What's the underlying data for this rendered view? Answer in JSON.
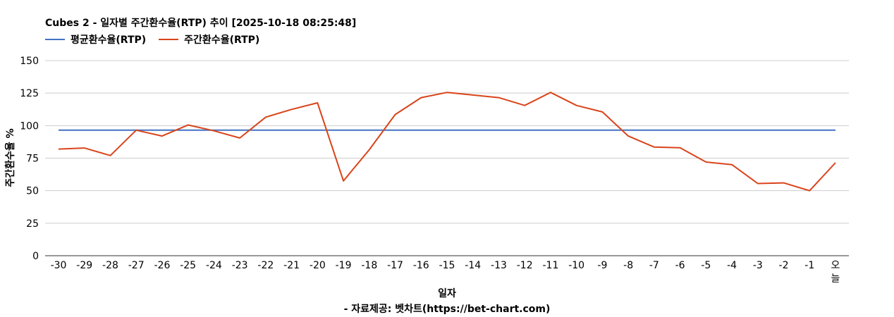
{
  "title": "Cubes 2 - 일자별 주간환수율(RTP) 추이 [2025-10-18 08:25:48]",
  "source": "- 자료제공: 벳차트(https://bet-chart.com)",
  "chart_data": {
    "type": "line",
    "xlabel": "일자",
    "ylabel": "주간환수율 %",
    "ylim": [
      0,
      150
    ],
    "yticks": [
      0,
      25,
      50,
      75,
      100,
      125,
      150
    ],
    "grid": true,
    "legend_position": "top-left",
    "categories": [
      "-30",
      "-29",
      "-28",
      "-27",
      "-26",
      "-25",
      "-24",
      "-23",
      "-22",
      "-21",
      "-20",
      "-19",
      "-18",
      "-17",
      "-16",
      "-15",
      "-14",
      "-13",
      "-12",
      "-11",
      "-10",
      "-9",
      "-8",
      "-7",
      "-6",
      "-5",
      "-4",
      "-3",
      "-2",
      "-1",
      "오늘"
    ],
    "series": [
      {
        "name": "평균환수율(RTP)",
        "color": "#4472c4",
        "values": [
          96.5,
          96.5,
          96.5,
          96.5,
          96.5,
          96.5,
          96.5,
          96.5,
          96.5,
          96.5,
          96.5,
          96.5,
          96.5,
          96.5,
          96.5,
          96.5,
          96.5,
          96.5,
          96.5,
          96.5,
          96.5,
          96.5,
          96.5,
          96.5,
          96.5,
          96.5,
          96.5,
          96.5,
          96.5,
          96.5,
          96.5
        ]
      },
      {
        "name": "주간환수율(RTP)",
        "color": "#d9441a",
        "values": [
          82,
          82.8,
          77,
          96.5,
          92,
          100.5,
          96,
          90.5,
          106.5,
          112.5,
          117.5,
          57.5,
          81.5,
          108.5,
          121.5,
          125.5,
          123.5,
          121.5,
          115.5,
          125.5,
          115.5,
          110.5,
          92,
          83.5,
          83,
          72,
          70,
          55.5,
          56,
          50,
          71.5
        ]
      }
    ]
  }
}
